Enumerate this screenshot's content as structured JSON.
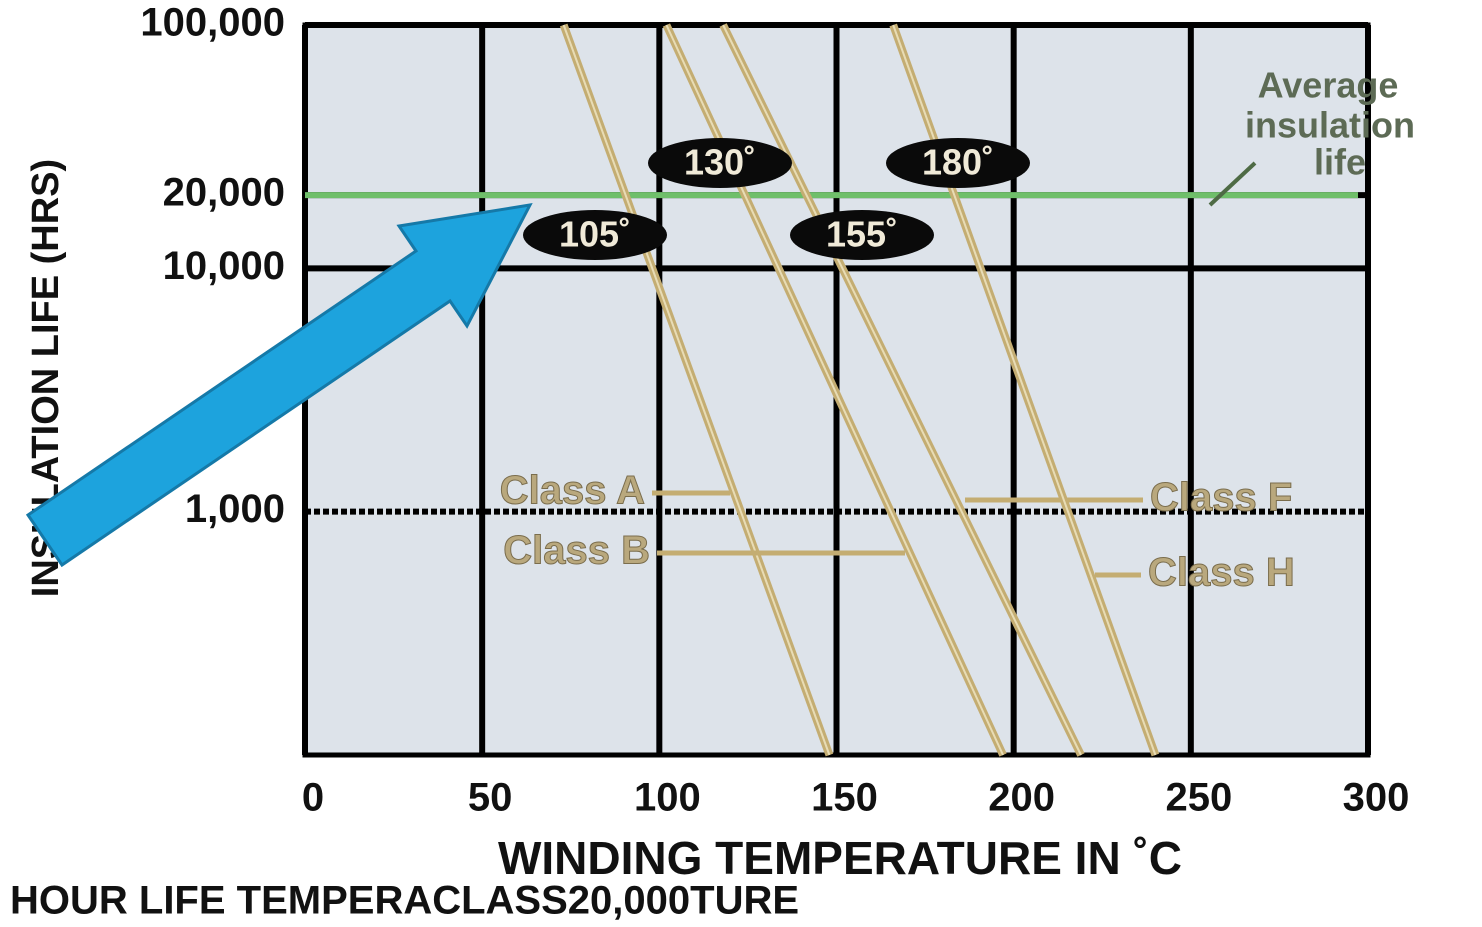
{
  "chart_data": {
    "type": "line",
    "ylabel": "INSULATION LIFE (HRS)",
    "xlabel": "WINDING TEMPERATURE IN ˚C",
    "caption": "HOUR LIFE TEMPERACLASS20,000TURE",
    "xlim": [
      0,
      300
    ],
    "xticks": [
      0,
      50,
      100,
      150,
      200,
      250,
      300
    ],
    "ylim": [
      100,
      100000
    ],
    "log_y": true,
    "yticks": [
      {
        "value": 100000,
        "label": "100,000"
      },
      {
        "value": 20000,
        "label": "20,000"
      },
      {
        "value": 10000,
        "label": "10,000"
      },
      {
        "value": 1000,
        "label": "1,000"
      }
    ],
    "grid": true,
    "series": [
      {
        "name": "Class A",
        "color": "#c4ad72",
        "x": [
          73,
          148
        ],
        "values": [
          100000,
          100
        ]
      },
      {
        "name": "Class B",
        "color": "#c4ad72",
        "x": [
          102,
          197
        ],
        "values": [
          100000,
          100
        ]
      },
      {
        "name": "Class F",
        "color": "#c4ad72",
        "x": [
          118,
          219
        ],
        "values": [
          100000,
          100
        ]
      },
      {
        "name": "Class H",
        "color": "#c4ad72",
        "x": [
          166,
          240
        ],
        "values": [
          100000,
          100
        ]
      }
    ],
    "reference_line": {
      "value": 20000,
      "color": "#6fbf6a"
    },
    "reference_label": [
      "Average",
      "insulation",
      "life"
    ],
    "annotations": [
      "130˚",
      "180˚",
      "105˚",
      "155˚"
    ]
  }
}
